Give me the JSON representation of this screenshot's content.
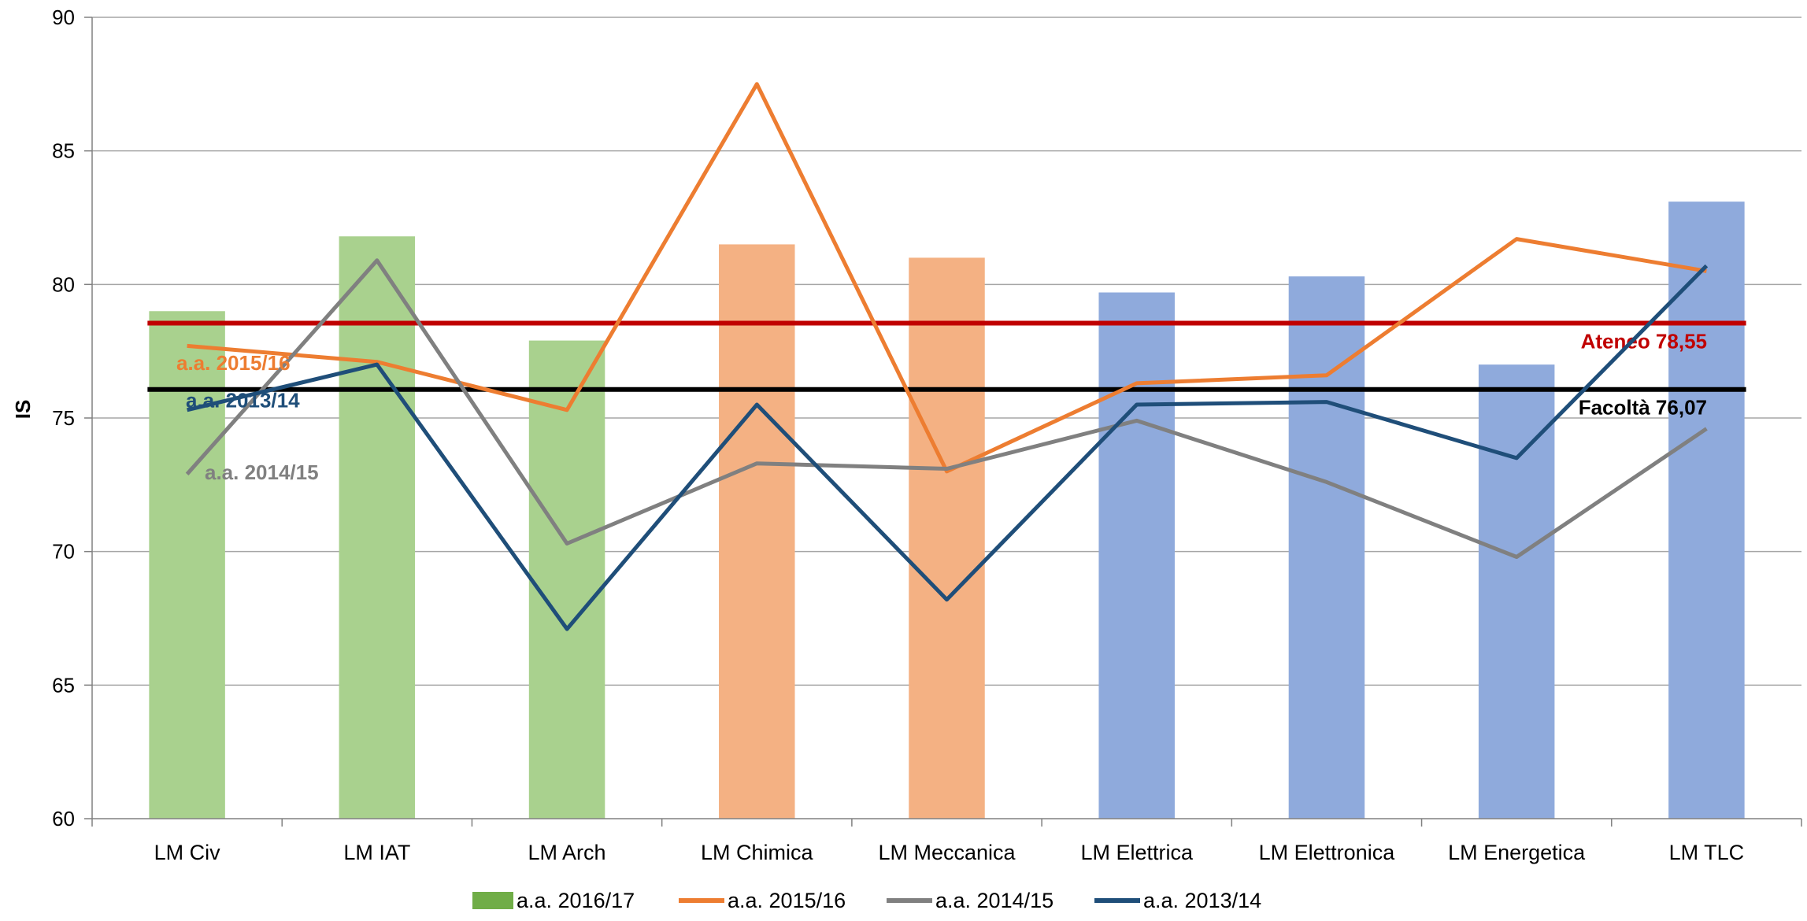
{
  "chart_data": {
    "type": "bar",
    "title": "",
    "xlabel": "",
    "ylabel": "IS",
    "ylim": [
      60,
      90
    ],
    "yticks": [
      60,
      65,
      70,
      75,
      80,
      85,
      90
    ],
    "grid": true,
    "legend_position": "bottom",
    "categories": [
      "LM Civ",
      "LM IAT",
      "LM Arch",
      "LM Chimica",
      "LM Meccanica",
      "LM Elettrica",
      "LM Elettronica",
      "LM Energetica",
      "LM TLC"
    ],
    "bars": {
      "name": "a.a. 2016/17",
      "values": [
        79.0,
        81.8,
        77.9,
        81.5,
        81.0,
        79.7,
        80.3,
        77.0,
        83.1
      ],
      "colors": [
        "#a9d18e",
        "#a9d18e",
        "#a9d18e",
        "#f4b183",
        "#f4b183",
        "#8faadc",
        "#8faadc",
        "#8faadc",
        "#8faadc"
      ],
      "legend_color": "#70ad47"
    },
    "series": [
      {
        "name": "a.a. 2015/16",
        "type": "line",
        "color": "#ed7d31",
        "values": [
          77.7,
          77.1,
          75.3,
          87.5,
          73.0,
          76.3,
          76.6,
          81.7,
          80.5
        ]
      },
      {
        "name": "a.a. 2014/15",
        "type": "line",
        "color": "#808080",
        "values": [
          72.9,
          80.9,
          70.3,
          73.3,
          73.1,
          74.9,
          72.6,
          69.8,
          74.6
        ]
      },
      {
        "name": "a.a. 2013/14",
        "type": "line",
        "color": "#1f4e79",
        "values": [
          75.3,
          77.0,
          67.1,
          75.5,
          68.2,
          75.5,
          75.6,
          73.5,
          80.7
        ]
      }
    ],
    "reference_lines": [
      {
        "label": "Ateneo 78,55",
        "value": 78.55,
        "color": "#c00000"
      },
      {
        "label": "Facoltà 76,07",
        "value": 76.07,
        "color": "#000000"
      }
    ],
    "annotations": [
      {
        "text": "a.a. 2015/16",
        "color": "#ed7d31",
        "x_category": "LM Civ",
        "y": 76.8
      },
      {
        "text": "a.a. 2013/14",
        "color": "#1f4e79",
        "x_category": "LM Civ",
        "y": 75.4
      },
      {
        "text": "a.a. 2014/15",
        "color": "#808080",
        "x_category": "LM Civ",
        "y": 72.7
      }
    ]
  }
}
